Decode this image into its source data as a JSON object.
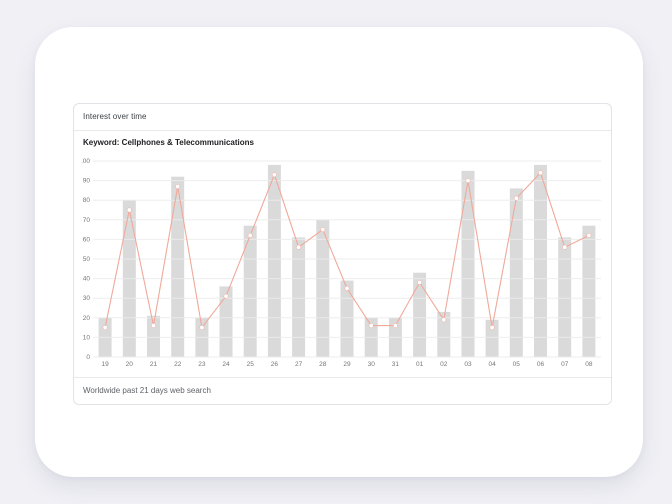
{
  "page": {
    "background": "#f0f0f5"
  },
  "card": {
    "background": "#ffffff"
  },
  "widget": {
    "title": "Interest over time",
    "keyword_label": "Keyword: Cellphones & Telecommunications",
    "footer_caption": "Worldwide past 21 days web search"
  },
  "chart_data": {
    "type": "bar",
    "title": "Keyword: Cellphones & Telecommunications",
    "categories": [
      "19",
      "20",
      "21",
      "22",
      "23",
      "24",
      "25",
      "26",
      "27",
      "28",
      "29",
      "30",
      "31",
      "01",
      "02",
      "03",
      "04",
      "05",
      "06",
      "07",
      "08"
    ],
    "series": [
      {
        "name": "interest-bars",
        "type": "bar",
        "color": "#dadada",
        "values": [
          20,
          80,
          21,
          92,
          20,
          36,
          67,
          98,
          61,
          70,
          39,
          20,
          20,
          43,
          23,
          95,
          19,
          86,
          98,
          61,
          67
        ]
      },
      {
        "name": "interest-line",
        "type": "line",
        "color": "#f0a99a",
        "values": [
          15,
          75,
          16,
          87,
          15,
          31,
          62,
          93,
          56,
          65,
          35,
          16,
          16,
          38,
          19,
          90,
          15,
          81,
          94,
          56,
          62
        ]
      }
    ],
    "xlabel": "",
    "ylabel": "",
    "ylim": [
      0,
      100
    ],
    "ytick_step": 10,
    "grid": true,
    "gridline_color": "#ececec",
    "axis_label_color": "#757575",
    "point_fill": "#ffffff",
    "legend_position": "none"
  }
}
